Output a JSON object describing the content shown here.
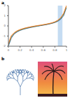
{
  "panel_labels": [
    "a",
    "b"
  ],
  "chart_data": {
    "type": "line",
    "x": [
      0,
      0.05,
      0.1,
      0.15,
      0.2,
      0.25,
      0.3,
      0.35,
      0.4,
      0.45,
      0.5,
      0.55,
      0.6,
      0.65,
      0.7,
      0.75,
      0.8,
      0.85,
      0.9,
      0.95,
      1
    ],
    "series": [
      {
        "color": "#1f4e9c",
        "values": [
          -2,
          -1.2,
          -0.8,
          -0.6,
          -0.45,
          -0.35,
          -0.27,
          -0.2,
          -0.14,
          -0.08,
          -0.03,
          0.02,
          0.07,
          0.12,
          0.18,
          0.25,
          0.33,
          0.45,
          0.65,
          1.0,
          1.8
        ]
      },
      {
        "color": "#3a9a3a",
        "values": [
          -1.9,
          -1.1,
          -0.75,
          -0.55,
          -0.42,
          -0.32,
          -0.24,
          -0.17,
          -0.11,
          -0.06,
          -0.01,
          0.04,
          0.09,
          0.14,
          0.2,
          0.27,
          0.36,
          0.5,
          0.72,
          1.1,
          1.9
        ]
      },
      {
        "color": "#d62728",
        "values": [
          -1.8,
          -1.0,
          -0.7,
          -0.5,
          -0.38,
          -0.28,
          -0.2,
          -0.14,
          -0.08,
          -0.03,
          0.02,
          0.06,
          0.11,
          0.16,
          0.22,
          0.29,
          0.39,
          0.54,
          0.78,
          1.2,
          2
        ]
      },
      {
        "color": "#f0a030",
        "values": [
          -1.7,
          -0.95,
          -0.65,
          -0.47,
          -0.35,
          -0.26,
          -0.18,
          -0.12,
          -0.06,
          -0.01,
          0.04,
          0.08,
          0.13,
          0.18,
          0.24,
          0.31,
          0.41,
          0.57,
          0.82,
          1.25,
          2
        ]
      }
    ],
    "xlim": [
      0,
      1
    ],
    "xticks": [
      0,
      0.2,
      0.4,
      0.6,
      0.8,
      1
    ],
    "ylim": [
      -2,
      2
    ],
    "yticks": [
      -2,
      -1,
      0,
      1,
      2
    ],
    "highlight_x": [
      0.85,
      0.93
    ]
  }
}
